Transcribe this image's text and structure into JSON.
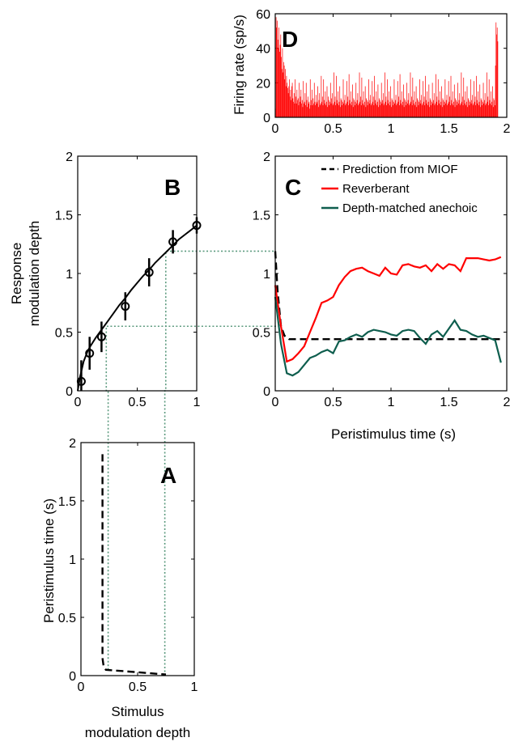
{
  "colors": {
    "reverberant": "#ff0000",
    "anechoic": "#0e5e4e",
    "prediction": "#000000",
    "guide": "#5b9a7e",
    "psth": "#ff0000"
  },
  "chart_data": [
    {
      "panel": "D",
      "type": "bar",
      "letter": "D",
      "xlabel": "",
      "ylabel": "Firing rate (sp/s)",
      "xlim": [
        0,
        2
      ],
      "ylim": [
        0,
        60
      ],
      "xticks": [
        0,
        0.5,
        1,
        1.5,
        2
      ],
      "xtick_labels": [
        "0",
        "0.5",
        "1",
        "1.5",
        "2"
      ],
      "yticks": [
        0,
        20,
        40,
        60
      ],
      "ytick_labels": [
        "0",
        "20",
        "40",
        "60"
      ],
      "series": [
        {
          "bin_width": 0.005,
          "x_start": 0,
          "values": [
            5,
            58,
            52,
            56,
            45,
            40,
            52,
            38,
            42,
            48,
            35,
            28,
            40,
            26,
            32,
            30,
            22,
            28,
            18,
            24,
            20,
            17,
            14,
            18,
            22,
            12,
            16,
            10,
            18,
            20,
            11,
            9,
            14,
            8,
            22,
            12,
            8,
            16,
            10,
            11,
            7,
            20,
            9,
            12,
            16,
            8,
            10,
            6,
            21,
            8,
            9,
            14,
            7,
            20,
            10,
            6,
            12,
            8,
            9,
            5,
            22,
            7,
            10,
            16,
            7,
            11,
            8,
            20,
            9,
            7,
            13,
            8,
            9,
            18,
            6,
            10,
            14,
            7,
            8,
            24,
            9,
            12,
            7,
            22,
            10,
            8,
            15,
            7,
            9,
            18,
            6,
            12,
            10,
            7,
            9,
            20,
            8,
            11,
            14,
            7,
            8,
            26,
            9,
            12,
            7,
            24,
            10,
            8,
            15,
            7,
            9,
            18,
            6,
            11,
            10,
            7,
            9,
            22,
            8,
            10,
            13,
            7,
            8,
            21,
            9,
            12,
            7,
            25,
            10,
            8,
            15,
            7,
            9,
            19,
            6,
            11,
            10,
            7,
            9,
            20,
            8,
            10,
            14,
            7,
            8,
            26,
            9,
            12,
            7,
            23,
            10,
            8,
            15,
            7,
            9,
            18,
            6,
            11,
            10,
            7,
            9,
            22,
            8,
            10,
            13,
            7,
            8,
            21,
            9,
            12,
            7,
            24,
            10,
            8,
            15,
            7,
            9,
            19,
            6,
            11,
            10,
            7,
            9,
            20,
            8,
            10,
            14,
            7,
            8,
            26,
            9,
            12,
            7,
            22,
            10,
            8,
            15,
            7,
            9,
            18,
            6,
            11,
            10,
            7,
            9,
            22,
            8,
            10,
            13,
            7,
            8,
            21,
            9,
            12,
            7,
            25,
            10,
            8,
            15,
            7,
            9,
            19,
            6,
            11,
            10,
            7,
            9,
            20,
            8,
            10,
            14,
            7,
            8,
            26,
            9,
            12,
            7,
            23,
            10,
            8,
            15,
            7,
            9,
            18,
            6,
            11,
            10,
            7,
            9,
            22,
            8,
            10,
            13,
            7,
            8,
            21,
            9,
            12,
            7,
            24,
            10,
            8,
            15,
            7,
            9,
            19,
            6,
            11,
            10,
            7,
            9,
            20,
            8,
            10,
            14,
            7,
            8,
            25,
            9,
            12,
            7,
            22,
            10,
            8,
            15,
            7,
            9,
            18,
            6,
            11,
            10,
            7,
            9,
            22,
            8,
            10,
            13,
            7,
            8,
            21,
            9,
            12,
            7,
            24,
            10,
            8,
            15,
            7,
            9,
            19,
            6,
            11,
            10,
            7,
            9,
            20,
            8,
            10,
            14,
            7,
            8,
            26,
            9,
            12,
            7,
            23,
            10,
            8,
            15,
            7,
            9,
            18,
            6,
            11,
            10,
            7,
            9,
            22,
            8,
            10,
            13,
            7,
            8,
            21,
            9,
            12,
            7,
            24,
            10,
            8,
            15,
            7,
            9,
            19,
            6,
            11,
            10,
            7,
            9,
            20,
            8,
            10,
            14,
            7,
            8,
            26,
            9,
            12,
            7,
            22,
            10,
            8,
            15,
            7,
            9,
            18,
            6,
            11,
            10,
            7,
            30,
            55,
            48,
            52,
            44
          ]
        }
      ]
    },
    {
      "panel": "B",
      "type": "line",
      "letter": "B",
      "xlabel": "",
      "ylabel_lines": [
        "Response",
        "modulation depth"
      ],
      "xlim": [
        0,
        1
      ],
      "ylim": [
        0,
        2
      ],
      "xticks": [
        0,
        0.5,
        1
      ],
      "xtick_labels": [
        "0",
        "0.5",
        "1"
      ],
      "yticks": [
        0,
        0.5,
        1,
        1.5,
        2
      ],
      "ytick_labels": [
        "0",
        "0.5",
        "1",
        "1.5",
        "2"
      ],
      "fit": {
        "x": [
          0,
          0.02,
          0.05,
          0.08,
          0.1,
          0.15,
          0.2,
          0.25,
          0.3,
          0.35,
          0.4,
          0.45,
          0.5,
          0.55,
          0.6,
          0.65,
          0.7,
          0.75,
          0.8,
          0.85,
          0.9,
          0.95,
          1.0
        ],
        "y": [
          0.0,
          0.12,
          0.25,
          0.33,
          0.37,
          0.45,
          0.52,
          0.59,
          0.66,
          0.73,
          0.79,
          0.86,
          0.92,
          0.98,
          1.03,
          1.09,
          1.14,
          1.19,
          1.24,
          1.29,
          1.33,
          1.37,
          1.41
        ]
      },
      "points": {
        "x": [
          0.03,
          0.1,
          0.2,
          0.4,
          0.6,
          0.8,
          1.0
        ],
        "y": [
          0.08,
          0.32,
          0.46,
          0.72,
          1.01,
          1.27,
          1.41
        ],
        "err": [
          0.18,
          0.14,
          0.13,
          0.12,
          0.12,
          0.1,
          0.07
        ]
      }
    },
    {
      "panel": "C",
      "type": "line",
      "letter": "C",
      "xlabel": "Peristimulus time (s)",
      "ylabel": "",
      "xlim": [
        0,
        2
      ],
      "ylim": [
        0,
        2
      ],
      "xticks": [
        0,
        0.5,
        1,
        1.5,
        2
      ],
      "xtick_labels": [
        "0",
        "0.5",
        "1",
        "1.5",
        "2"
      ],
      "yticks": [
        0,
        0.5,
        1,
        1.5,
        2
      ],
      "ytick_labels": [
        "0",
        "0.5",
        "1",
        "1.5",
        "2"
      ],
      "legend_position": "top-right",
      "series": [
        {
          "name": "Prediction from MIOF",
          "style": "dashed",
          "color_key": "prediction",
          "x": [
            0,
            0.02,
            0.05,
            0.08,
            0.12,
            1.95
          ],
          "y": [
            1.19,
            0.85,
            0.55,
            0.47,
            0.44,
            0.44
          ]
        },
        {
          "name": "Reverberant",
          "style": "solid",
          "color_key": "reverberant",
          "x": [
            0,
            0.05,
            0.1,
            0.15,
            0.2,
            0.25,
            0.3,
            0.35,
            0.4,
            0.45,
            0.5,
            0.55,
            0.6,
            0.65,
            0.7,
            0.75,
            0.8,
            0.85,
            0.9,
            0.95,
            1.0,
            1.05,
            1.1,
            1.15,
            1.2,
            1.25,
            1.3,
            1.35,
            1.4,
            1.45,
            1.5,
            1.55,
            1.6,
            1.65,
            1.7,
            1.75,
            1.8,
            1.85,
            1.9,
            1.95
          ],
          "y": [
            0.9,
            0.55,
            0.25,
            0.27,
            0.32,
            0.38,
            0.5,
            0.62,
            0.75,
            0.77,
            0.8,
            0.9,
            0.97,
            1.02,
            1.04,
            1.05,
            1.02,
            1.0,
            0.98,
            1.05,
            1.0,
            0.99,
            1.07,
            1.08,
            1.06,
            1.05,
            1.07,
            1.02,
            1.08,
            1.04,
            1.08,
            1.07,
            1.02,
            1.13,
            1.13,
            1.13,
            1.12,
            1.11,
            1.12,
            1.14
          ]
        },
        {
          "name": "Depth-matched anechoic",
          "style": "solid",
          "color_key": "anechoic",
          "x": [
            0,
            0.05,
            0.1,
            0.15,
            0.2,
            0.25,
            0.3,
            0.35,
            0.4,
            0.45,
            0.5,
            0.55,
            0.6,
            0.65,
            0.7,
            0.75,
            0.8,
            0.85,
            0.9,
            0.95,
            1.0,
            1.05,
            1.1,
            1.15,
            1.2,
            1.25,
            1.3,
            1.35,
            1.4,
            1.45,
            1.5,
            1.55,
            1.6,
            1.65,
            1.7,
            1.75,
            1.8,
            1.85,
            1.9,
            1.95
          ],
          "y": [
            0.8,
            0.4,
            0.15,
            0.13,
            0.16,
            0.22,
            0.28,
            0.3,
            0.33,
            0.35,
            0.32,
            0.42,
            0.43,
            0.46,
            0.48,
            0.46,
            0.5,
            0.52,
            0.51,
            0.5,
            0.48,
            0.47,
            0.51,
            0.52,
            0.51,
            0.45,
            0.4,
            0.48,
            0.51,
            0.46,
            0.53,
            0.6,
            0.52,
            0.51,
            0.48,
            0.46,
            0.47,
            0.45,
            0.43,
            0.24
          ]
        }
      ]
    },
    {
      "panel": "A",
      "type": "line",
      "letter": "A",
      "xlabel_lines": [
        "Stimulus",
        "modulation depth"
      ],
      "ylabel": "Peristimulus time (s)",
      "xlim": [
        0,
        1
      ],
      "ylim": [
        0,
        2
      ],
      "xticks": [
        0,
        0.5,
        1
      ],
      "xtick_labels": [
        "0",
        "0.5",
        "1"
      ],
      "yticks": [
        0,
        0.5,
        1,
        1.5,
        2
      ],
      "ytick_labels": [
        "0",
        "0.5",
        "1",
        "1.5",
        "2"
      ],
      "series": [
        {
          "style": "dashed",
          "color_key": "prediction",
          "x": [
            0.19,
            0.19,
            0.2,
            0.22,
            0.75
          ],
          "y": [
            1.9,
            0.15,
            0.08,
            0.05,
            0.01
          ]
        }
      ]
    }
  ],
  "guides": {
    "low": {
      "stimulus_depth": 0.24,
      "response_depth": 0.55,
      "time": 0.05
    },
    "high": {
      "stimulus_depth": 0.74,
      "response_depth": 1.19,
      "time": 0.0
    }
  }
}
